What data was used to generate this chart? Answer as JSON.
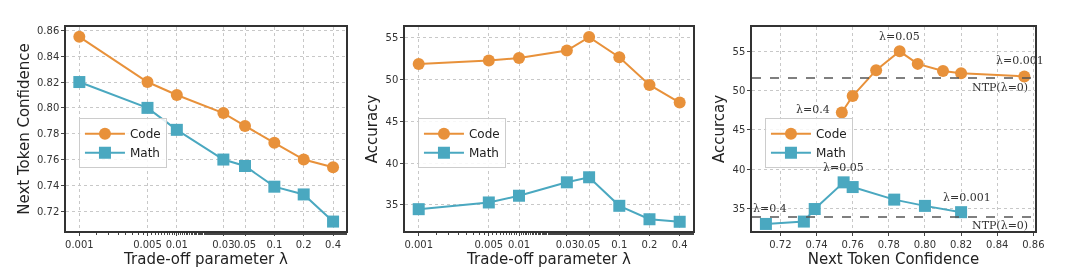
{
  "chart_data": [
    {
      "type": "line",
      "xlabel": "Trade-off parameter λ",
      "ylabel": "Next Token Confidence",
      "log": "x",
      "grid": true,
      "legend": "left",
      "line_style": "solid",
      "x": [
        0.001,
        0.005,
        0.01,
        0.03,
        0.05,
        0.1,
        0.2,
        0.4
      ],
      "xlim": [
        0.00073,
        0.543
      ],
      "xticks": [
        0.001,
        0.005,
        0.01,
        0.03,
        0.05,
        0.1,
        0.2,
        0.4
      ],
      "ylim": [
        0.7047,
        0.8626
      ],
      "yticks": [
        0.72,
        0.74,
        0.76,
        0.78,
        {
          "value": 0.8,
          "label": "0.80"
        },
        0.82,
        0.84,
        0.86
      ],
      "series": [
        {
          "name": "Code",
          "color": "#e8913a",
          "marker": "circle",
          "values": [
            0.855,
            0.82,
            0.81,
            0.796,
            0.786,
            0.773,
            0.76,
            0.754
          ]
        },
        {
          "name": "Math",
          "color": "#4aa8c0",
          "marker": "square",
          "values": [
            0.82,
            0.8,
            0.783,
            0.76,
            0.755,
            0.739,
            0.733,
            0.712
          ]
        }
      ]
    },
    {
      "type": "line",
      "xlabel": "Trade-off parameter λ",
      "ylabel": "Accuracy",
      "log": "x",
      "grid": true,
      "legend": "left",
      "line_style": "solid",
      "x": [
        0.001,
        0.005,
        0.01,
        0.03,
        0.05,
        0.1,
        0.2,
        0.4
      ],
      "xlim": [
        0.00073,
        0.543
      ],
      "xticks": [
        0.001,
        0.005,
        0.01,
        0.03,
        0.05,
        0.1,
        0.2,
        0.4
      ],
      "ylim": [
        31.9,
        56.2
      ],
      "yticks": [
        35,
        40,
        45,
        50,
        55
      ],
      "series": [
        {
          "name": "Code",
          "color": "#e8913a",
          "marker": "circle",
          "values": [
            51.8,
            52.2,
            52.5,
            53.4,
            55.0,
            52.6,
            49.3,
            47.2
          ]
        },
        {
          "name": "Math",
          "color": "#4aa8c0",
          "marker": "square",
          "values": [
            34.5,
            35.3,
            36.1,
            37.7,
            38.3,
            34.9,
            33.3,
            33.0
          ]
        }
      ]
    },
    {
      "type": "line",
      "xlabel": "Next Token Confidence",
      "ylabel": "Accurcay",
      "grid": true,
      "legend": "left",
      "line_style": "solid",
      "xlim": [
        0.7043,
        0.8609
      ],
      "xticks": [
        0.72,
        0.74,
        0.76,
        0.78,
        {
          "value": 0.8,
          "label": "0.80"
        },
        0.82,
        0.84,
        0.86
      ],
      "ylim": [
        32.1,
        58.1
      ],
      "yticks": [
        35,
        40,
        45,
        50,
        55
      ],
      "series": [
        {
          "name": "Code",
          "color": "#e8913a",
          "marker": "circle",
          "x": [
            0.754,
            0.76,
            0.773,
            0.786,
            0.796,
            0.81,
            0.82,
            0.855
          ],
          "values": [
            47.2,
            49.3,
            52.6,
            55.0,
            53.4,
            52.5,
            52.2,
            51.8
          ]
        },
        {
          "name": "Math",
          "color": "#4aa8c0",
          "marker": "square",
          "x": [
            0.712,
            0.733,
            0.739,
            0.755,
            0.76,
            0.783,
            0.8,
            0.82
          ],
          "values": [
            33.0,
            33.3,
            34.9,
            38.3,
            37.7,
            36.1,
            35.3,
            34.5
          ]
        }
      ],
      "ref_lines": [
        {
          "axis": "y",
          "value": 51.6,
          "color": "#555555",
          "line_style": "dashed"
        },
        {
          "axis": "y",
          "value": 33.9,
          "color": "#555555",
          "line_style": "dashed"
        }
      ],
      "annotations": [
        {
          "text": "λ=0.05",
          "x": 0.786,
          "y": 55.0
        },
        {
          "text": "λ=0.001",
          "x": 0.855,
          "y": 51.8
        },
        {
          "text": "λ=0.4",
          "x": 0.754,
          "y": 47.2
        },
        {
          "text": "λ=0.05",
          "x": 0.755,
          "y": 38.3
        },
        {
          "text": "λ=0.001",
          "x": 0.82,
          "y": 34.5
        },
        {
          "text": "λ=0.4",
          "x": 0.712,
          "y": 33.0
        },
        {
          "text": "NTP(λ=0)",
          "x": 0.86,
          "y": 51.6
        },
        {
          "text": "NTP(λ=0)",
          "x": 0.86,
          "y": 33.9
        }
      ]
    }
  ]
}
